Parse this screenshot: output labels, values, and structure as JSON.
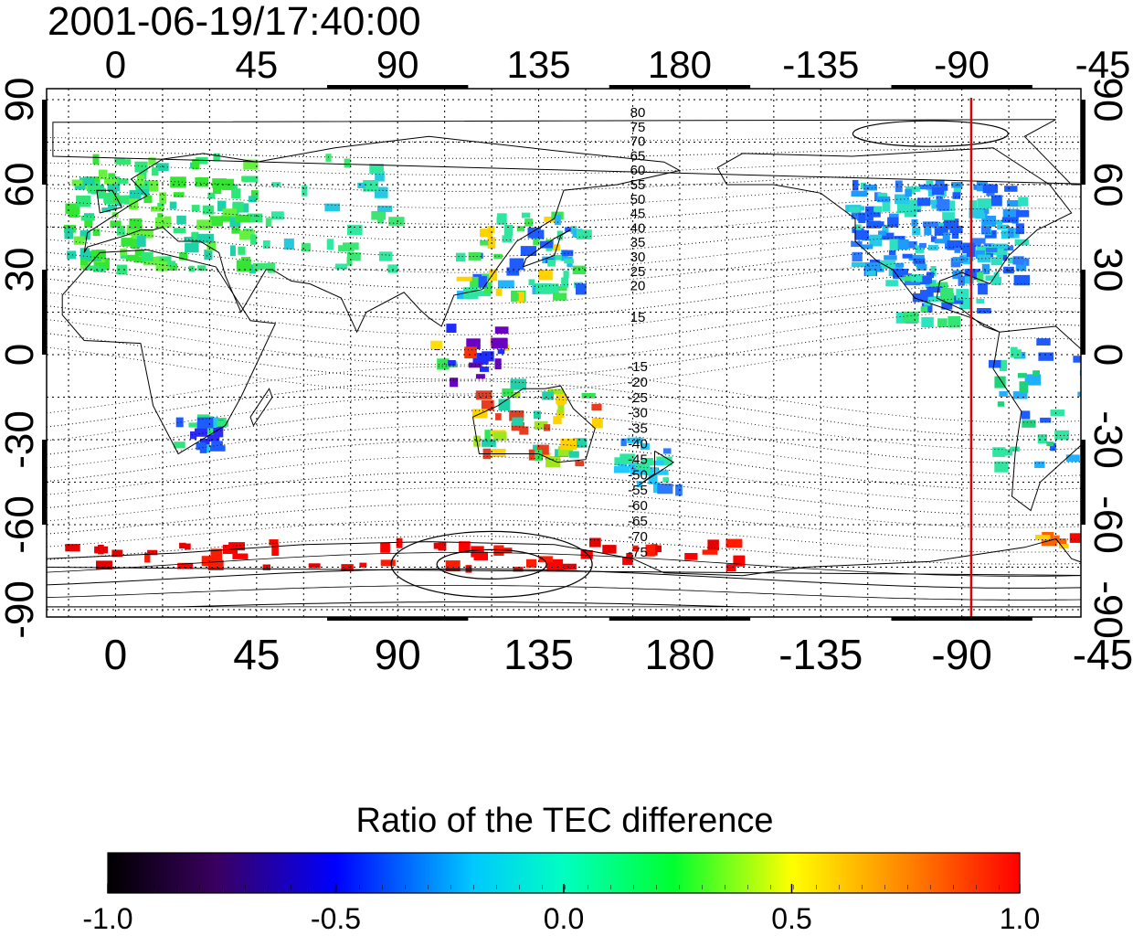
{
  "timestamp": "2001-06-19/17:40:00",
  "axes": {
    "lon_ticks": [
      "0",
      "45",
      "90",
      "135",
      "180",
      "-135",
      "-90",
      "-45"
    ],
    "lat_ticks_left": [
      "90",
      "60",
      "30",
      "0",
      "-30",
      "-60",
      "-90"
    ],
    "lat_ticks_right": [
      "90",
      "60",
      "30",
      "0",
      "-30",
      "-60",
      "-90"
    ]
  },
  "contour_labels": {
    "north": [
      "80",
      "75",
      "70",
      "65",
      "60",
      "55",
      "50",
      "45",
      "40",
      "35",
      "30",
      "25",
      "20",
      "15"
    ],
    "south": [
      "-15",
      "-20",
      "-25",
      "-30",
      "-35",
      "-40",
      "-45",
      "-50",
      "-55",
      "-60",
      "-65",
      "-70",
      "-75"
    ]
  },
  "marker_line": {
    "longitude": -87,
    "color": "#e00000"
  },
  "colorbar": {
    "title": "Ratio of the TEC difference",
    "ticks": [
      "-1.0",
      "-0.5",
      "0.0",
      "0.5",
      "1.0"
    ],
    "min": -1.0,
    "max": 1.0
  },
  "colors": {
    "map_frame": "#000000",
    "grid": "#000000"
  }
}
